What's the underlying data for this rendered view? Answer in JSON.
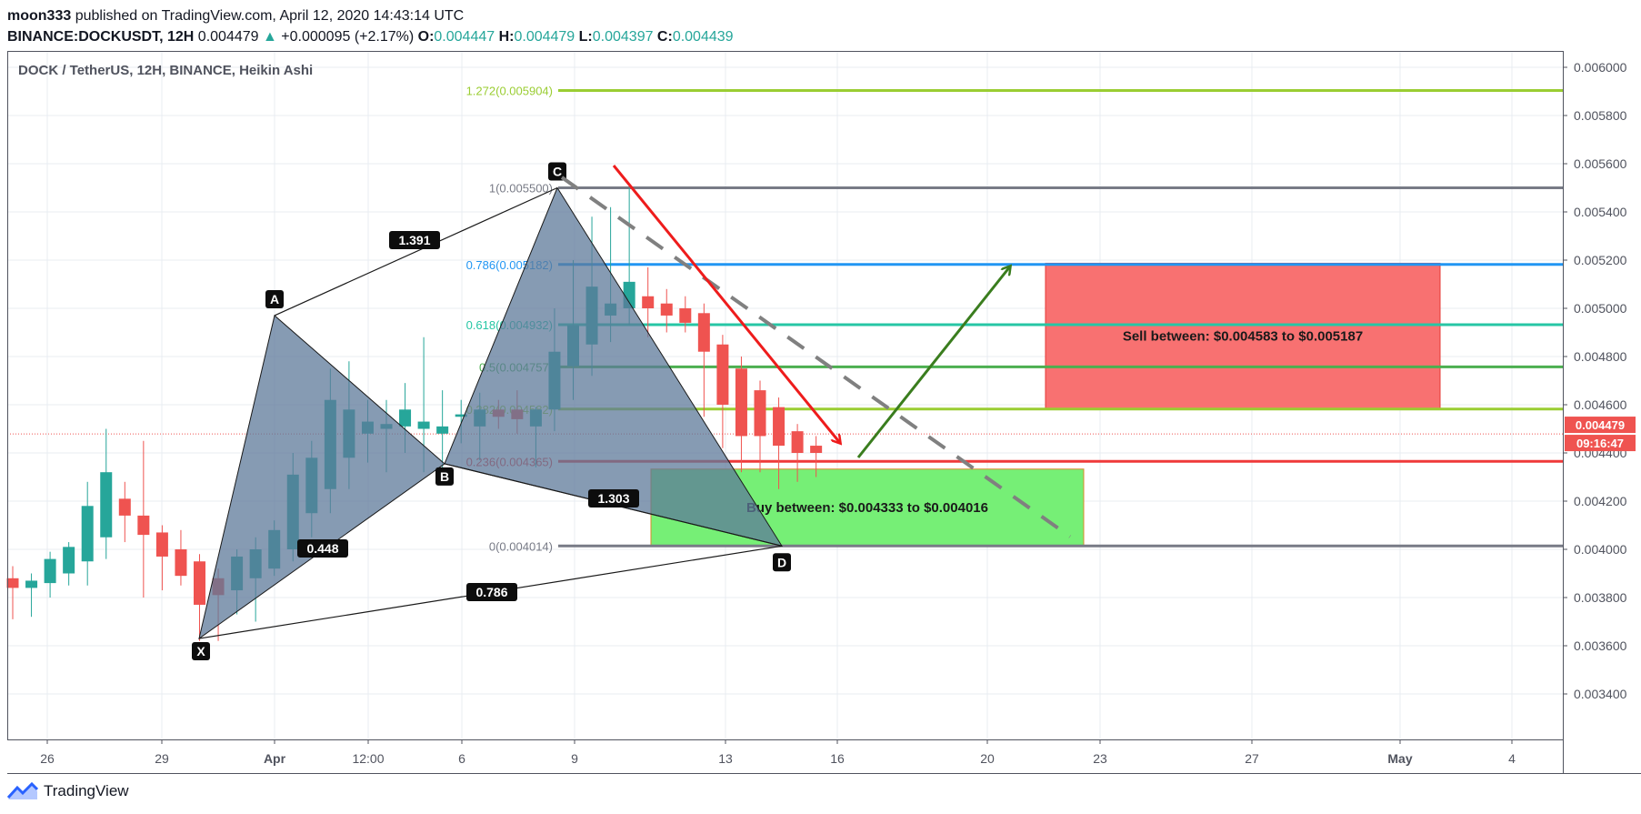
{
  "header": {
    "author": "moon333",
    "published": " published on TradingView.com, April 12, 2020 14:43:14 UTC",
    "symbol": "BINANCE:DOCKUSDT, 12H",
    "last": " 0.004479",
    "up_arrow": "▲",
    "change": " +0.000095 (+2.17%)",
    "o_label": " O:",
    "o": "0.004447",
    "h_label": " H:",
    "h": "0.004479",
    "l_label": " L:",
    "l": "0.004397",
    "c_label": " C:",
    "c": "0.004439"
  },
  "footer": {
    "brand": "TradingView",
    "logo_icon": "tradingview-logo-icon"
  },
  "colors": {
    "up": "#26a69a",
    "down": "#ef5350",
    "pattern_fill": "#5d7999",
    "grid": "#e9ecf2",
    "axis": "#50535e",
    "buy_zone": "#76ef76",
    "sell_zone": "#f87171"
  },
  "chart_data": {
    "type": "candlestick",
    "title": "DOCK / TetherUS, 12H, BINANCE, Heikin Ashi",
    "x_ticks": [
      "26",
      "29",
      "Apr",
      "12:00",
      "6",
      "9",
      "13",
      "16",
      "20",
      "23",
      "27",
      "May",
      "4"
    ],
    "y_ticks": [
      "0.006000",
      "0.005800",
      "0.005600",
      "0.005400",
      "0.005200",
      "0.005000",
      "0.004800",
      "0.004600",
      "0.004400",
      "0.004200",
      "0.004000",
      "0.003800",
      "0.003600",
      "0.003400"
    ],
    "ylim": [
      0.00326,
      0.006
    ],
    "price_label": "0.004479",
    "countdown_label": "09:16:47",
    "candles": [
      {
        "o": 0.00388,
        "h": 0.00393,
        "l": 0.00371,
        "c": 0.00384
      },
      {
        "o": 0.00384,
        "h": 0.0039,
        "l": 0.00372,
        "c": 0.00387
      },
      {
        "o": 0.00386,
        "h": 0.00399,
        "l": 0.0038,
        "c": 0.00396
      },
      {
        "o": 0.0039,
        "h": 0.00403,
        "l": 0.00385,
        "c": 0.00401
      },
      {
        "o": 0.00395,
        "h": 0.00428,
        "l": 0.00385,
        "c": 0.00418
      },
      {
        "o": 0.00405,
        "h": 0.0045,
        "l": 0.00396,
        "c": 0.00432
      },
      {
        "o": 0.00421,
        "h": 0.00428,
        "l": 0.00403,
        "c": 0.00414
      },
      {
        "o": 0.00414,
        "h": 0.00445,
        "l": 0.0038,
        "c": 0.00406
      },
      {
        "o": 0.00407,
        "h": 0.0041,
        "l": 0.00383,
        "c": 0.00397
      },
      {
        "o": 0.004,
        "h": 0.00408,
        "l": 0.00385,
        "c": 0.00389
      },
      {
        "o": 0.00395,
        "h": 0.00398,
        "l": 0.00362,
        "c": 0.00377
      },
      {
        "o": 0.00388,
        "h": 0.00392,
        "l": 0.00362,
        "c": 0.00381
      },
      {
        "o": 0.00383,
        "h": 0.004,
        "l": 0.00373,
        "c": 0.00397
      },
      {
        "o": 0.00388,
        "h": 0.00405,
        "l": 0.0037,
        "c": 0.004
      },
      {
        "o": 0.00392,
        "h": 0.00412,
        "l": 0.00389,
        "c": 0.00408
      },
      {
        "o": 0.004,
        "h": 0.0044,
        "l": 0.00395,
        "c": 0.00431
      },
      {
        "o": 0.00415,
        "h": 0.00445,
        "l": 0.00405,
        "c": 0.00438
      },
      {
        "o": 0.00425,
        "h": 0.00475,
        "l": 0.00415,
        "c": 0.00462
      },
      {
        "o": 0.00438,
        "h": 0.00478,
        "l": 0.00425,
        "c": 0.00458
      },
      {
        "o": 0.00448,
        "h": 0.00462,
        "l": 0.00436,
        "c": 0.00453
      },
      {
        "o": 0.0045,
        "h": 0.00462,
        "l": 0.00432,
        "c": 0.00452
      },
      {
        "o": 0.00451,
        "h": 0.00469,
        "l": 0.0044,
        "c": 0.00458
      },
      {
        "o": 0.0045,
        "h": 0.00488,
        "l": 0.00432,
        "c": 0.00453
      },
      {
        "o": 0.00448,
        "h": 0.00466,
        "l": 0.00432,
        "c": 0.00451
      },
      {
        "o": 0.00455,
        "h": 0.00462,
        "l": 0.00444,
        "c": 0.00456
      },
      {
        "o": 0.00451,
        "h": 0.00465,
        "l": 0.00437,
        "c": 0.00458
      },
      {
        "o": 0.00458,
        "h": 0.00462,
        "l": 0.0045,
        "c": 0.00455
      },
      {
        "o": 0.00458,
        "h": 0.00466,
        "l": 0.00448,
        "c": 0.00454
      },
      {
        "o": 0.00451,
        "h": 0.00459,
        "l": 0.00434,
        "c": 0.00458
      },
      {
        "o": 0.00458,
        "h": 0.005,
        "l": 0.00449,
        "c": 0.00482
      },
      {
        "o": 0.00476,
        "h": 0.0052,
        "l": 0.00462,
        "c": 0.00493
      },
      {
        "o": 0.00485,
        "h": 0.00538,
        "l": 0.00472,
        "c": 0.00509
      },
      {
        "o": 0.00497,
        "h": 0.00542,
        "l": 0.00486,
        "c": 0.00502
      },
      {
        "o": 0.005,
        "h": 0.0055,
        "l": 0.00493,
        "c": 0.00511
      },
      {
        "o": 0.00505,
        "h": 0.00517,
        "l": 0.00488,
        "c": 0.005
      },
      {
        "o": 0.00502,
        "h": 0.00508,
        "l": 0.0049,
        "c": 0.00497
      },
      {
        "o": 0.005,
        "h": 0.00505,
        "l": 0.0049,
        "c": 0.00494
      },
      {
        "o": 0.00498,
        "h": 0.00502,
        "l": 0.00455,
        "c": 0.00482
      },
      {
        "o": 0.00485,
        "h": 0.00489,
        "l": 0.00442,
        "c": 0.0046
      },
      {
        "o": 0.00475,
        "h": 0.0048,
        "l": 0.00432,
        "c": 0.00447
      },
      {
        "o": 0.00466,
        "h": 0.0047,
        "l": 0.00432,
        "c": 0.00447
      },
      {
        "o": 0.00459,
        "h": 0.00463,
        "l": 0.00425,
        "c": 0.00443
      },
      {
        "o": 0.00449,
        "h": 0.00452,
        "l": 0.00428,
        "c": 0.0044
      },
      {
        "o": 0.00443,
        "h": 0.00447,
        "l": 0.0043,
        "c": 0.0044
      }
    ],
    "fib_levels": [
      {
        "label": "1.272(0.005904)",
        "value": 0.005904,
        "color": "#9acd32"
      },
      {
        "label": "1(0.005500)",
        "value": 0.0055,
        "color": "#787b86"
      },
      {
        "label": "0.786(0.005182)",
        "value": 0.005182,
        "color": "#2196f3"
      },
      {
        "label": "0.618(0.004932)",
        "value": 0.004932,
        "color": "#26c6a5"
      },
      {
        "label": "0.5(0.004757)",
        "value": 0.004757,
        "color": "#4caf50"
      },
      {
        "label": "0.382(0.004582)",
        "value": 0.004582,
        "color": "#9acd32"
      },
      {
        "label": "0.236(0.004365)",
        "value": 0.004365,
        "color": "#ef3a3a"
      },
      {
        "label": "0(0.004014)",
        "value": 0.004014,
        "color": "#787b86"
      }
    ],
    "pattern_points": [
      {
        "label": "X",
        "value": 0.00363
      },
      {
        "label": "A",
        "value": 0.00497
      },
      {
        "label": "B",
        "value": 0.004355
      },
      {
        "label": "C",
        "value": 0.0055
      },
      {
        "label": "D",
        "value": 0.004014
      }
    ],
    "ratios": [
      "1.391",
      "0.448",
      "1.303",
      "0.786"
    ],
    "zones": [
      {
        "label": "Sell between: $0.004583 to $0.005187",
        "top": 0.005187,
        "bottom": 0.004583
      },
      {
        "label": "Buy between: $0.004333 to $0.004016",
        "top": 0.004333,
        "bottom": 0.004016
      }
    ]
  }
}
